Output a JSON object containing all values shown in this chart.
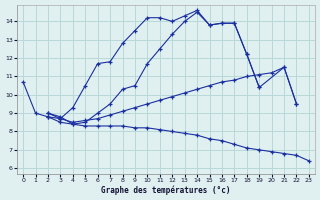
{
  "xlabel": "Graphe des températures (°c)",
  "background_color": "#e0f0f0",
  "grid_color": "#b8d8d8",
  "line_color": "#1a2fa0",
  "xlim": [
    -0.5,
    23.5
  ],
  "ylim": [
    5.7,
    14.9
  ],
  "xticks": [
    0,
    1,
    2,
    3,
    4,
    5,
    6,
    7,
    8,
    9,
    10,
    11,
    12,
    13,
    14,
    15,
    16,
    17,
    18,
    19,
    20,
    21,
    22,
    23
  ],
  "yticks": [
    6,
    7,
    8,
    9,
    10,
    11,
    12,
    13,
    14
  ],
  "line1_x": [
    0,
    1,
    2,
    3,
    4,
    5,
    6,
    7,
    8,
    9,
    10,
    11,
    12,
    13,
    14,
    15,
    16,
    17,
    18,
    19,
    21,
    22
  ],
  "line1_y": [
    10.7,
    9.0,
    8.8,
    8.7,
    9.3,
    10.5,
    11.7,
    11.8,
    12.8,
    13.5,
    14.2,
    14.2,
    14.0,
    14.3,
    14.6,
    13.8,
    13.9,
    13.9,
    12.2,
    10.4,
    11.5,
    9.5
  ],
  "line2_x": [
    2,
    3,
    4,
    5,
    6,
    7,
    8,
    9,
    10,
    11,
    12,
    13,
    14,
    15,
    16,
    17,
    18,
    19
  ],
  "line2_y": [
    8.8,
    8.5,
    8.4,
    8.5,
    9.0,
    9.5,
    10.3,
    10.5,
    11.7,
    12.5,
    13.3,
    14.0,
    14.5,
    13.8,
    13.9,
    13.9,
    12.2,
    10.4
  ],
  "line3_x": [
    2,
    3,
    4,
    5,
    6,
    7,
    8,
    9,
    10,
    11,
    12,
    13,
    14,
    15,
    16,
    17,
    18,
    19,
    20,
    21,
    22
  ],
  "line3_y": [
    9.0,
    8.7,
    8.5,
    8.6,
    8.7,
    8.9,
    9.1,
    9.3,
    9.5,
    9.7,
    9.9,
    10.1,
    10.3,
    10.5,
    10.7,
    10.8,
    11.0,
    11.1,
    11.2,
    11.5,
    9.5
  ],
  "line4_x": [
    2,
    3,
    4,
    5,
    6,
    7,
    8,
    9,
    10,
    11,
    12,
    13,
    14,
    15,
    16,
    17,
    18,
    19,
    20,
    21,
    22,
    23
  ],
  "line4_y": [
    9.0,
    8.8,
    8.4,
    8.3,
    8.3,
    8.3,
    8.3,
    8.2,
    8.2,
    8.1,
    8.0,
    7.9,
    7.8,
    7.6,
    7.5,
    7.3,
    7.1,
    7.0,
    6.9,
    6.8,
    6.7,
    6.4
  ]
}
